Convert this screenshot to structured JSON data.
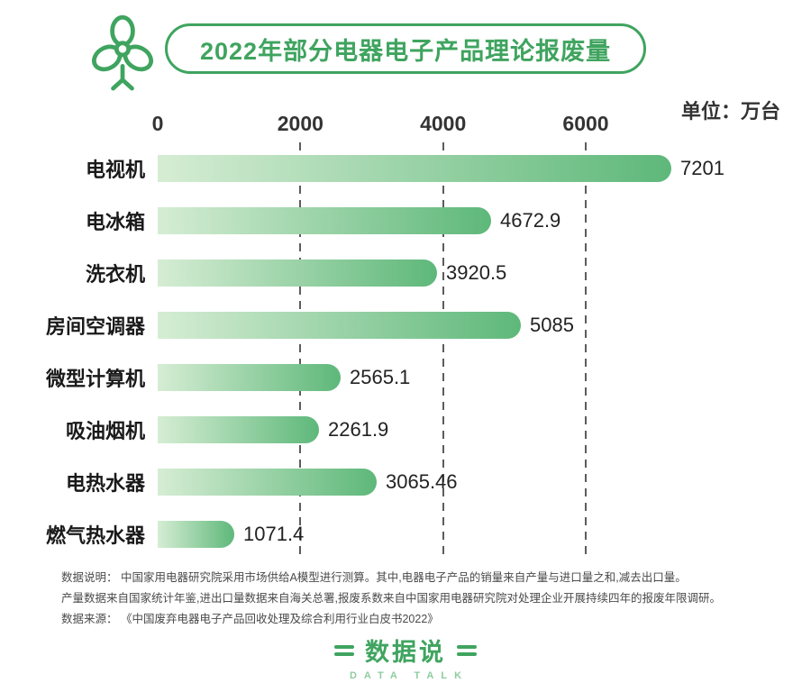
{
  "header": {
    "title": "2022年部分电器电子产品理论报废量",
    "unit_label": "单位：万台"
  },
  "chart_data": {
    "type": "bar",
    "orientation": "horizontal",
    "title": "2022年部分电器电子产品理论报废量",
    "unit": "万台",
    "categories": [
      "电视机",
      "电冰箱",
      "洗衣机",
      "房间空调器",
      "微型计算机",
      "吸油烟机",
      "电热水器",
      "燃气热水器"
    ],
    "values": [
      7201,
      4672.9,
      3920.5,
      5085,
      2565.1,
      2261.9,
      3065.46,
      1071.4
    ],
    "value_labels": [
      "7201",
      "4672.9",
      "3920.5",
      "5085",
      "2565.1",
      "2261.9",
      "3065.46",
      "1071.4"
    ],
    "x_ticks": [
      0,
      2000,
      4000,
      6000
    ],
    "xlim": [
      0,
      8800
    ],
    "grid": "dashed-vertical",
    "legend": "none",
    "bar_color_start": "#d6edd4",
    "bar_color_end": "#5eb87a"
  },
  "notes": {
    "line1": "数据说明： 中国家用电器研究院采用市场供给A模型进行测算。其中,电器电子产品的销量来自产量与进口量之和,减去出口量。",
    "line2": "产量数据来自国家统计年鉴,进出口量数据来自海关总署,报废系数来自中国家用电器研究院对处理企业开展持续四年的报废年限调研。",
    "line3": "数据来源： 《中国废弃电器电子产品回收处理及综合利用行业白皮书2022》"
  },
  "footer": {
    "logo_text": "数据说",
    "logo_subtext": "DATA TALK"
  },
  "colors": {
    "accent_green": "#3fa45f",
    "gridline_gray": "#5c5c5c",
    "text_dark": "#1a1a1a"
  }
}
